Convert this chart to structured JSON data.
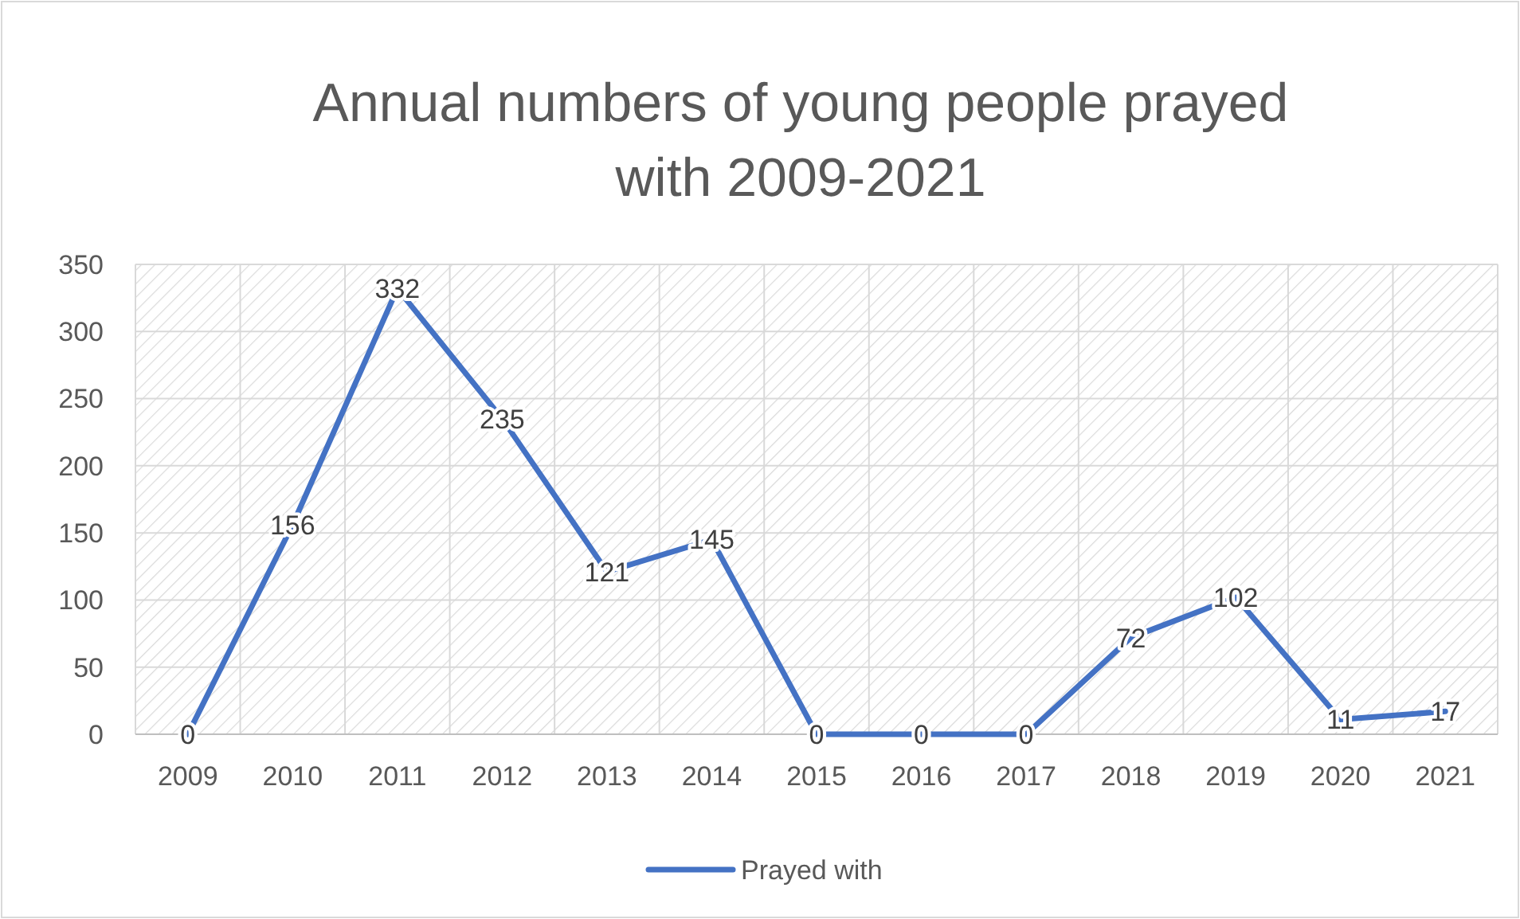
{
  "chart_data": {
    "type": "line",
    "title": "Annual numbers of young people prayed with 2009-2021",
    "categories": [
      "2009",
      "2010",
      "2011",
      "2012",
      "2013",
      "2014",
      "2015",
      "2016",
      "2017",
      "2018",
      "2019",
      "2020",
      "2021"
    ],
    "series": [
      {
        "name": "Prayed with",
        "color": "#4472c4",
        "values": [
          0,
          156,
          332,
          235,
          121,
          145,
          0,
          0,
          0,
          72,
          102,
          11,
          17
        ]
      }
    ],
    "ylim": [
      0,
      350
    ],
    "yticks": [
      0,
      50,
      100,
      150,
      200,
      250,
      300,
      350
    ],
    "grid": true,
    "legend": "bottom",
    "data_labels": true,
    "marker": "none",
    "line_style": "solid"
  }
}
